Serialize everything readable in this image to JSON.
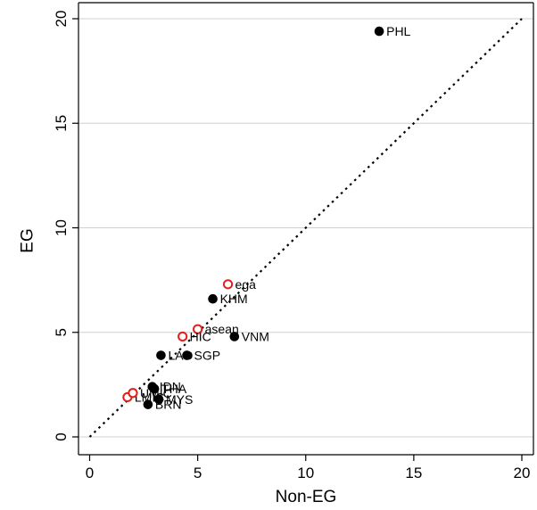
{
  "chart_data": {
    "type": "scatter",
    "xlabel": "Non-EG",
    "ylabel": "EG",
    "xlim": [
      0,
      20
    ],
    "ylim": [
      0,
      20
    ],
    "xticks": [
      "0",
      "5",
      "10",
      "15",
      "20"
    ],
    "yticks": [
      "0",
      "5",
      "10",
      "15",
      "20"
    ],
    "grid": "horizontal",
    "reference_line": "y = x (dotted)",
    "series": [
      {
        "marker": "filled-circle",
        "color": "#000000",
        "points": [
          {
            "label": "PHL",
            "x": 13.4,
            "y": 19.4
          },
          {
            "label": "KHM",
            "x": 5.7,
            "y": 6.6
          },
          {
            "label": "VNM",
            "x": 6.7,
            "y": 4.8
          },
          {
            "label": "LAO",
            "x": 3.3,
            "y": 3.9
          },
          {
            "label": "SGP",
            "x": 4.5,
            "y": 3.9
          },
          {
            "label": "IDN",
            "x": 2.9,
            "y": 2.4
          },
          {
            "label": "THA",
            "x": 3.0,
            "y": 2.3
          },
          {
            "label": "MYS",
            "x": 3.2,
            "y": 1.8
          },
          {
            "label": "BRN",
            "x": 2.7,
            "y": 1.55
          }
        ]
      },
      {
        "marker": "hollow-circle",
        "color": "#e0201b",
        "points": [
          {
            "label": "ega",
            "x": 6.4,
            "y": 7.3
          },
          {
            "label": "asean",
            "x": 5.0,
            "y": 5.15
          },
          {
            "label": "HIC",
            "x": 4.3,
            "y": 4.8
          },
          {
            "label": "LMIC",
            "x": 1.75,
            "y": 1.9
          },
          {
            "label": "UMIC",
            "x": 2.0,
            "y": 2.1
          }
        ]
      }
    ]
  }
}
